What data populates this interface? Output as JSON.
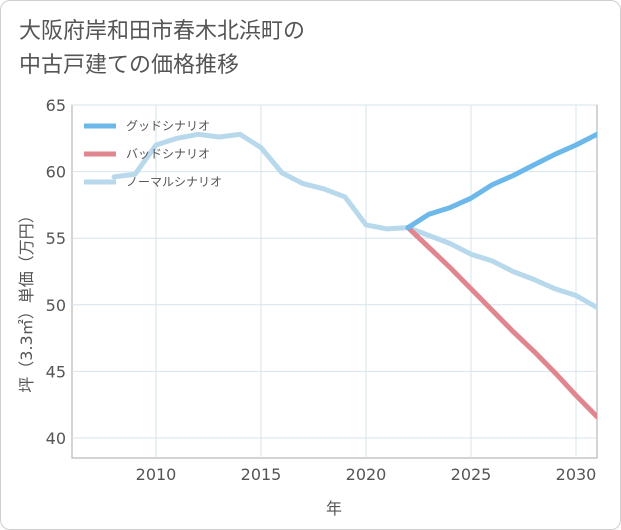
{
  "title_lines": [
    "大阪府岸和田市春木北浜町の",
    "中古戸建ての価格推移"
  ],
  "chart_data": {
    "type": "line",
    "xlabel": "年",
    "ylabel": "坪（3.3㎡）単価（万円）",
    "xlim": [
      2006,
      2031
    ],
    "ylim": [
      38.5,
      65
    ],
    "x_ticks": [
      2010,
      2015,
      2020,
      2025,
      2030
    ],
    "y_ticks": [
      40,
      45,
      50,
      55,
      60,
      65
    ],
    "grid": true,
    "legend_position": "top-left",
    "series": [
      {
        "name": "グッドシナリオ",
        "color": "#6cb8ea",
        "x": [
          2022,
          2023,
          2024,
          2025,
          2026,
          2027,
          2028,
          2029,
          2030,
          2031
        ],
        "y": [
          55.8,
          56.8,
          57.3,
          58.0,
          59.0,
          59.7,
          60.5,
          61.3,
          62.0,
          62.8
        ]
      },
      {
        "name": "バッドシナリオ",
        "color": "#e0868e",
        "x": [
          2022,
          2023,
          2024,
          2025,
          2026,
          2027,
          2028,
          2029,
          2030,
          2031
        ],
        "y": [
          55.8,
          54.3,
          52.8,
          51.2,
          49.6,
          48.0,
          46.5,
          44.9,
          43.2,
          41.6
        ]
      },
      {
        "name": "ノーマルシナリオ",
        "color": "#b8d9ec",
        "x": [
          2008,
          2009,
          2010,
          2011,
          2012,
          2013,
          2014,
          2015,
          2016,
          2017,
          2018,
          2019,
          2020,
          2021,
          2022,
          2023,
          2024,
          2025,
          2026,
          2027,
          2028,
          2029,
          2030,
          2031
        ],
        "y": [
          59.6,
          59.8,
          62.0,
          62.5,
          62.8,
          62.6,
          62.8,
          61.8,
          59.9,
          59.1,
          58.7,
          58.1,
          56.0,
          55.7,
          55.8,
          55.2,
          54.6,
          53.8,
          53.3,
          52.5,
          51.9,
          51.2,
          50.7,
          49.8
        ]
      }
    ]
  }
}
